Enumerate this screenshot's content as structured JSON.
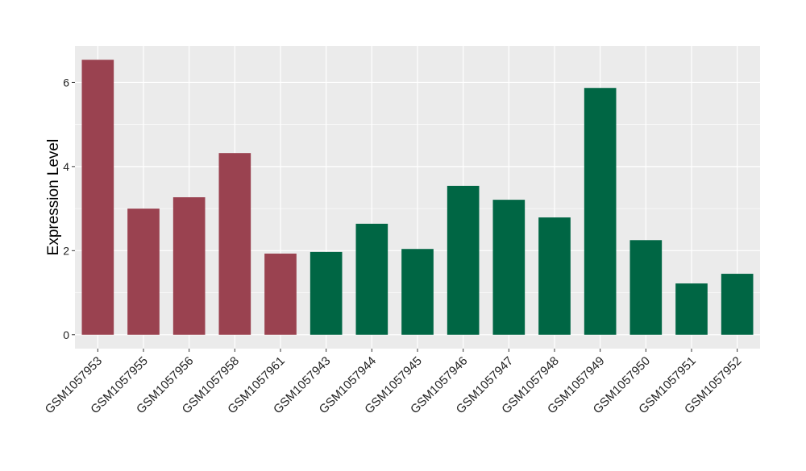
{
  "chart_data": {
    "type": "bar",
    "title": "",
    "xlabel": "",
    "ylabel": "Expression Level",
    "ylim": [
      -0.33,
      6.87
    ],
    "yticks": [
      0,
      2,
      4,
      6
    ],
    "grid": true,
    "legend": "none",
    "categories": [
      "GSM1057953",
      "GSM1057955",
      "GSM1057956",
      "GSM1057958",
      "GSM1057961",
      "GSM1057943",
      "GSM1057944",
      "GSM1057945",
      "GSM1057946",
      "GSM1057947",
      "GSM1057948",
      "GSM1057949",
      "GSM1057950",
      "GSM1057951",
      "GSM1057952"
    ],
    "values": [
      6.54,
      3.0,
      3.27,
      4.32,
      1.93,
      1.97,
      2.64,
      2.04,
      3.54,
      3.21,
      2.79,
      5.87,
      2.25,
      1.22,
      1.45
    ],
    "groups": [
      "a",
      "a",
      "a",
      "a",
      "a",
      "b",
      "b",
      "b",
      "b",
      "b",
      "b",
      "b",
      "b",
      "b",
      "b"
    ],
    "colors": {
      "a": "#9a4250",
      "b": "#006644"
    },
    "panel_bg": "#ebebeb",
    "grid_color": "#ffffff"
  }
}
